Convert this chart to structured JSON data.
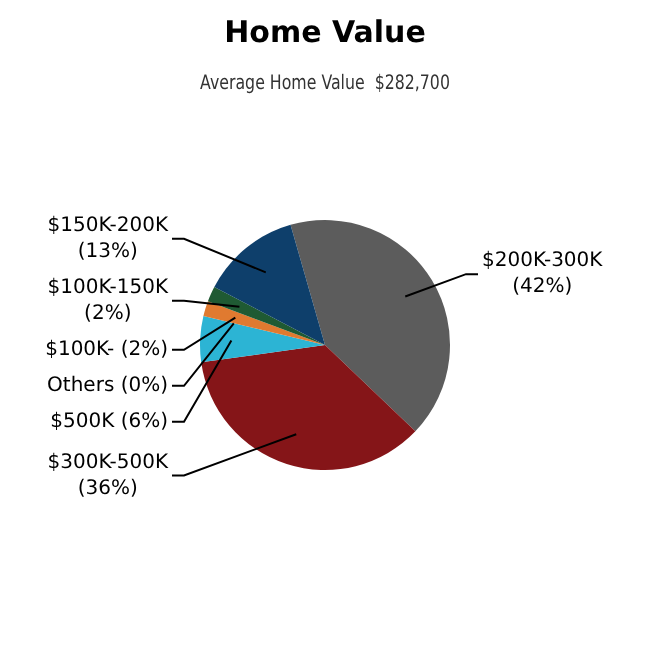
{
  "chart_data": {
    "type": "pie",
    "title": "Home Value",
    "subtitle": "Average Home Value  $282,700",
    "categories": [
      "$200K-300K",
      "$300K-500K",
      "$500K",
      "Others",
      "$100K-",
      "$100K-150K",
      "$150K-200K"
    ],
    "values": [
      42,
      36,
      6,
      0,
      2,
      2,
      13
    ],
    "colors": [
      "#5c5c5c",
      "#851518",
      "#2cb4d4",
      "#9a9a9a",
      "#e07a30",
      "#1f5a33",
      "#0e3f6b"
    ],
    "value_labels": [
      "(42%)",
      "(36%)",
      "(6%)",
      "(0%)",
      "(2%)",
      "(2%)",
      "(13%)"
    ],
    "legend": false
  }
}
